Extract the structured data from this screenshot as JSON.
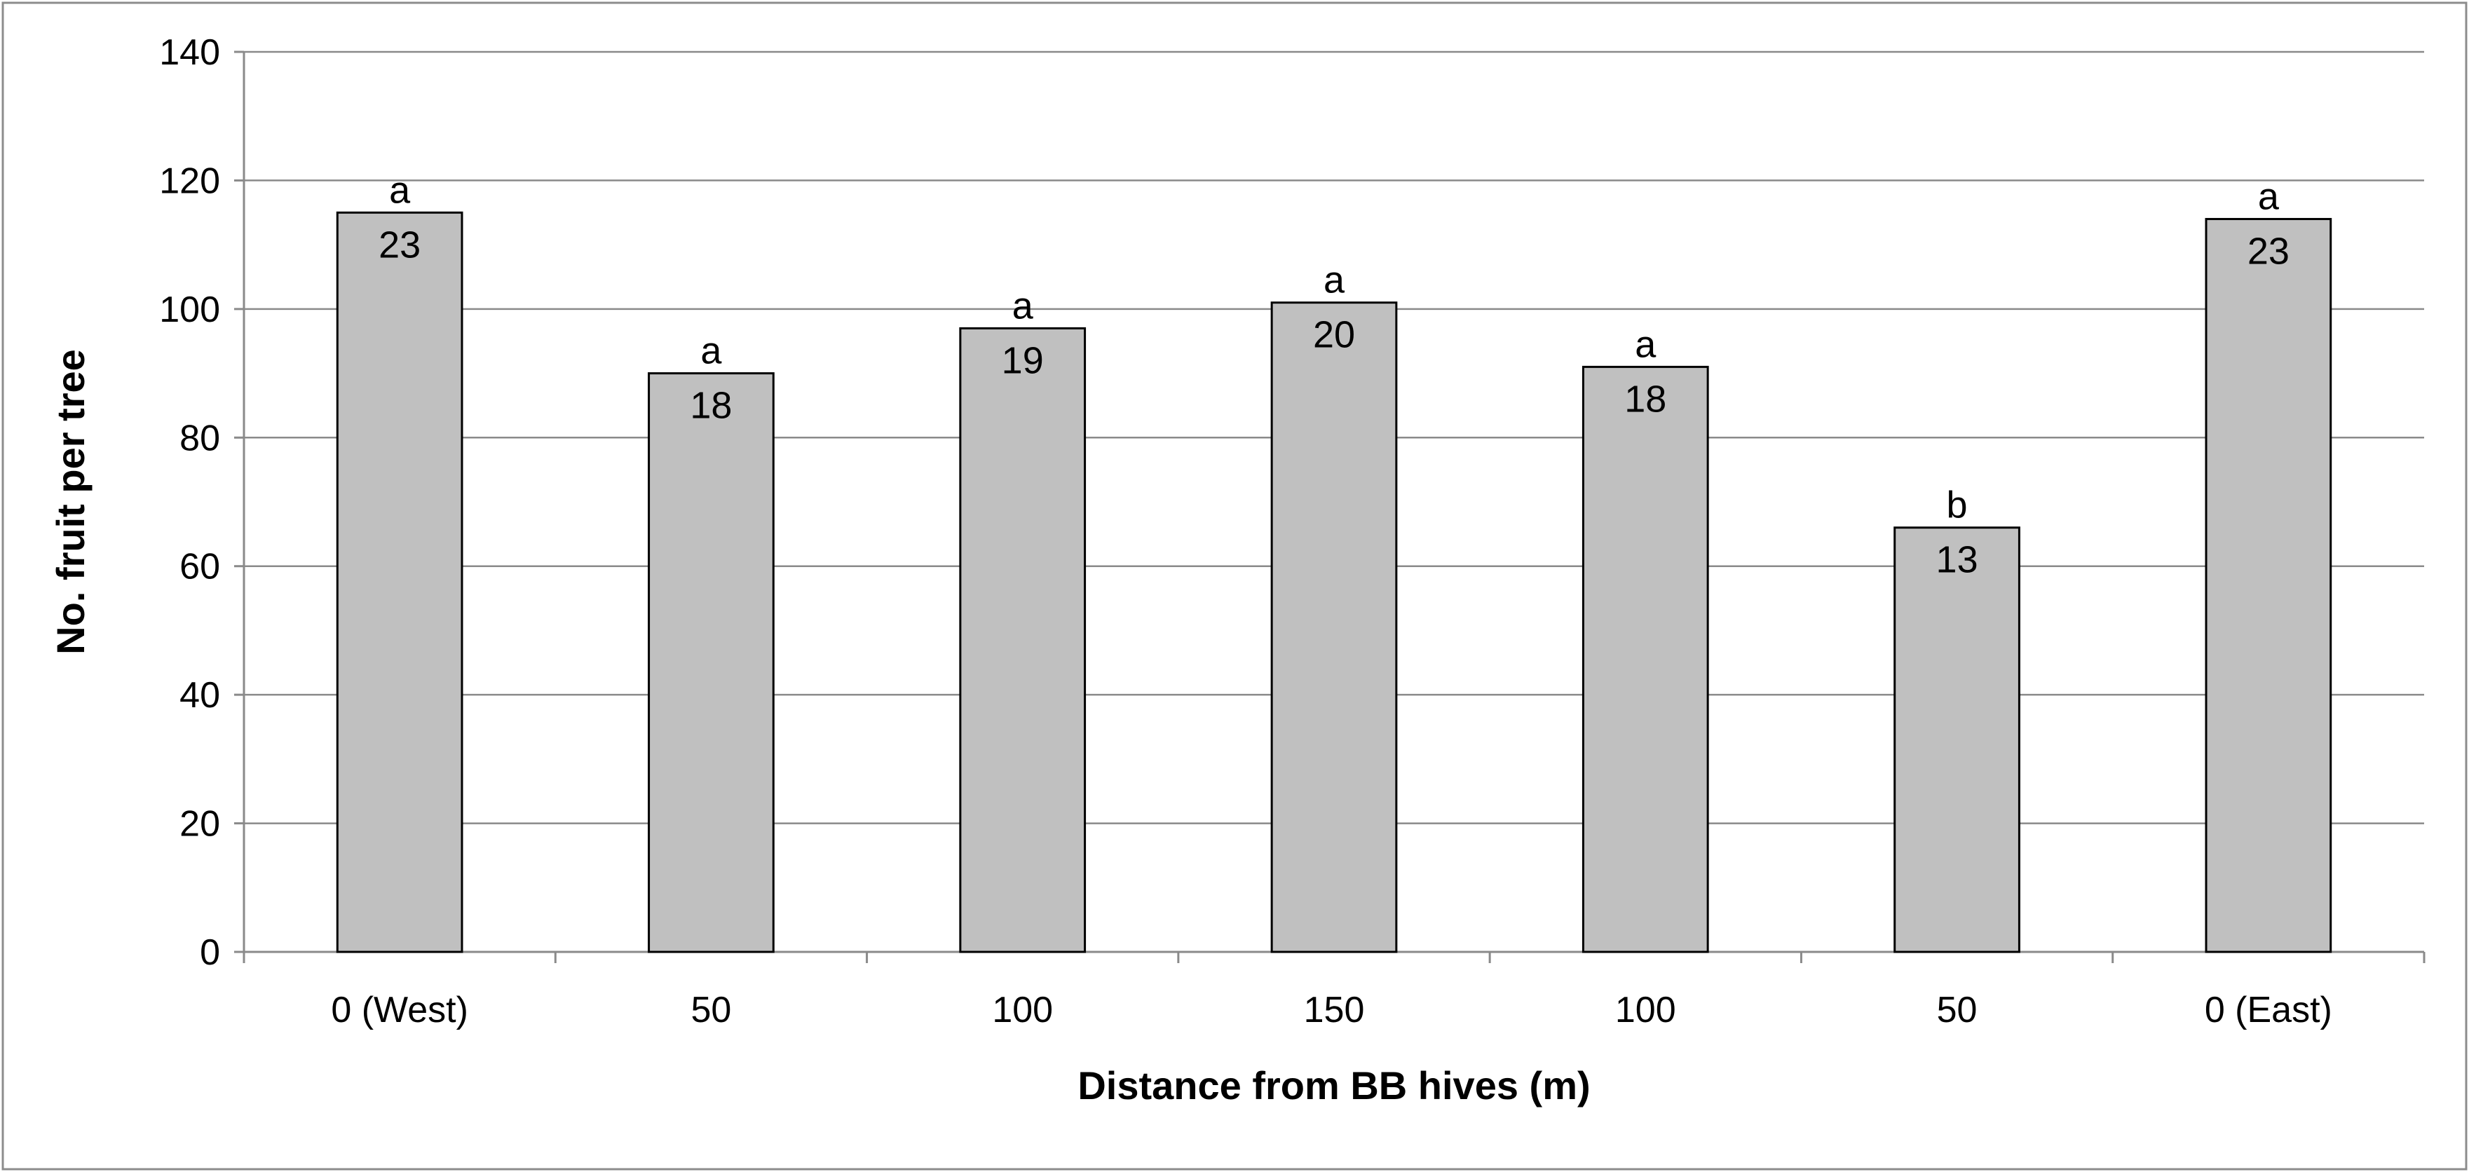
{
  "chart_data": {
    "type": "bar",
    "categories": [
      "0 (West)",
      "50",
      "100",
      "150",
      "100",
      "50",
      "0 (East)"
    ],
    "values": [
      115,
      90,
      97,
      101,
      91,
      66,
      114
    ],
    "count_labels": [
      "23",
      "18",
      "19",
      "20",
      "18",
      "13",
      "23"
    ],
    "significance_letters": [
      "a",
      "a",
      "a",
      "a",
      "a",
      "b",
      "a"
    ],
    "xlabel": "Distance from BB  hives (m)",
    "ylabel": "No. fruit per tree",
    "ylim": [
      0,
      140
    ],
    "yticks": [
      0,
      20,
      40,
      60,
      80,
      100,
      120,
      140
    ],
    "grid": true,
    "legend": "none",
    "colors": {
      "bar_fill": "#c0c0c0",
      "bar_edge": "#000000",
      "grid": "#8a8a8a"
    }
  }
}
